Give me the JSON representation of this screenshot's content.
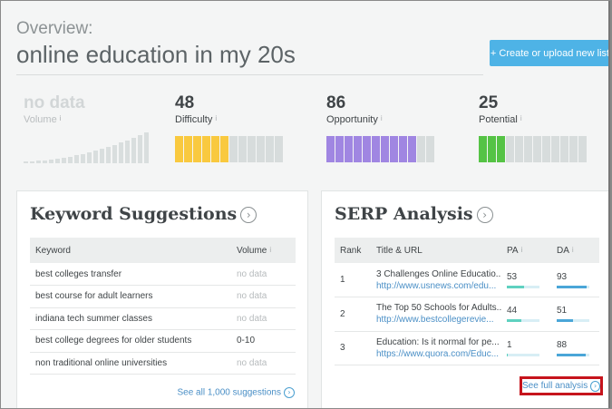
{
  "header": {
    "overview_label": "Overview:",
    "title": "online education in my 20s",
    "create_button": "+ Create or upload new list"
  },
  "metrics": {
    "volume": {
      "value": "no data",
      "label": "Volume",
      "info": "i"
    },
    "difficulty": {
      "value": "48",
      "label": "Difficulty",
      "info": "i",
      "filled_segments": 6,
      "total_segments": 12,
      "color": "#f9c93f"
    },
    "opportunity": {
      "value": "86",
      "label": "Opportunity",
      "info": "i",
      "filled_segments": 10,
      "total_segments": 12,
      "color": "#a086e2"
    },
    "potential": {
      "value": "25",
      "label": "Potential",
      "info": "i",
      "filled_segments": 3,
      "total_segments": 12,
      "color": "#55c345"
    }
  },
  "keyword_suggestions": {
    "title": "Keyword Suggestions",
    "col_keyword": "Keyword",
    "col_volume": "Volume",
    "volume_info": "i",
    "rows": [
      {
        "keyword": "best colleges transfer",
        "volume": "no data"
      },
      {
        "keyword": "best course for adult learners",
        "volume": "no data"
      },
      {
        "keyword": "indiana tech summer classes",
        "volume": "no data"
      },
      {
        "keyword": "best college degrees for older students",
        "volume": "0-10"
      },
      {
        "keyword": "non traditional online universities",
        "volume": "no data"
      }
    ],
    "see_all": "See all 1,000 suggestions"
  },
  "serp_analysis": {
    "title": "SERP Analysis",
    "col_rank": "Rank",
    "col_title": "Title & URL",
    "col_pa": "PA",
    "col_da": "DA",
    "info": "i",
    "rows": [
      {
        "rank": "1",
        "title": "3 Challenges Online Educatio...",
        "url": "http://www.usnews.com/edu...",
        "pa": "53",
        "da": "93"
      },
      {
        "rank": "2",
        "title": "The Top 50 Schools for Adults...",
        "url": "http://www.bestcollegerevie...",
        "pa": "44",
        "da": "51"
      },
      {
        "rank": "3",
        "title": "Education: Is it normal for pe...",
        "url": "https://www.quora.com/Educ...",
        "pa": "1",
        "da": "88"
      }
    ],
    "see_full": "See full analysis",
    "pa_color": "#5fd1c0",
    "da_color": "#4aa6d8"
  }
}
